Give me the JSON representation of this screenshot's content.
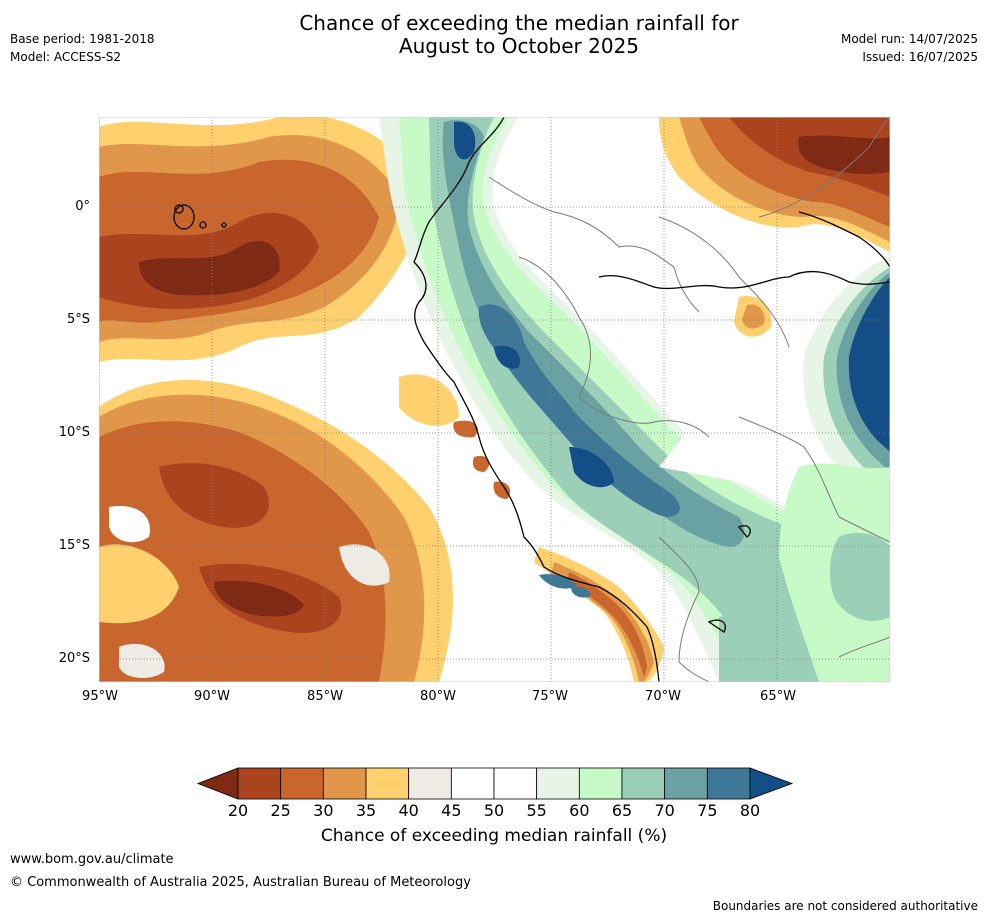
{
  "header": {
    "title_line1": "Chance of exceeding the median rainfall for",
    "title_line2": "August to October 2025",
    "base_period": "Base period: 1981-2018",
    "model": "Model: ACCESS-S2",
    "model_run": "Model run: 14/07/2025",
    "issued": "Issued: 16/07/2025"
  },
  "map": {
    "lat_labels": [
      "0°",
      "5°S",
      "10°S",
      "15°S",
      "20°S"
    ],
    "lon_labels": [
      "95°W",
      "90°W",
      "85°W",
      "80°W",
      "75°W",
      "70°W",
      "65°W"
    ]
  },
  "legend": {
    "ticks": [
      "20",
      "25",
      "30",
      "35",
      "40",
      "45",
      "50",
      "55",
      "60",
      "65",
      "70",
      "75",
      "80"
    ],
    "colors": [
      "#7e2a14",
      "#a9441f",
      "#c9662e",
      "#e1974a",
      "#fed06e",
      "#eeebe5",
      "#ffffff",
      "#ffffff",
      "#e7f5e7",
      "#c8fac8",
      "#9bcfb8",
      "#6aa2a3",
      "#3f7896",
      "#144e86"
    ],
    "label": "Chance of exceeding median rainfall (%)"
  },
  "footer": {
    "url": "www.bom.gov.au/climate",
    "copyright": "© Commonwealth of Australia 2025, Australian Bureau of Meteorology",
    "note": "Boundaries are not considered authoritative"
  }
}
